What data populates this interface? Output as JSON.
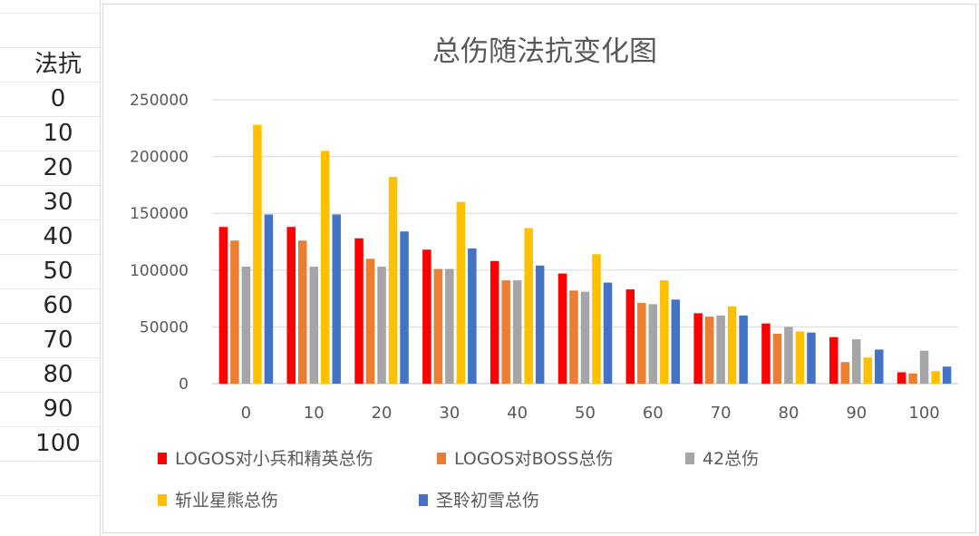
{
  "sheet": {
    "header": "法抗",
    "cells": [
      "0",
      "10",
      "20",
      "30",
      "40",
      "50",
      "60",
      "70",
      "80",
      "90",
      "100"
    ]
  },
  "chart_data": {
    "type": "bar",
    "title": "总伤随法抗变化图",
    "xlabel": "",
    "ylabel": "",
    "categories": [
      "0",
      "10",
      "20",
      "30",
      "40",
      "50",
      "60",
      "70",
      "80",
      "90",
      "100"
    ],
    "ylim": [
      0,
      250000
    ],
    "yticks": [
      "0",
      "50000",
      "100000",
      "150000",
      "200000",
      "250000"
    ],
    "grid": true,
    "legend_position": "bottom",
    "series": [
      {
        "name": "LOGOS对小兵和精英总伤",
        "color": "#ff0000",
        "values": [
          138000,
          138000,
          128000,
          118000,
          108000,
          97000,
          83000,
          62000,
          53000,
          41000,
          10000
        ]
      },
      {
        "name": "LOGOS对BOSS总伤",
        "color": "#ed7d31",
        "values": [
          126000,
          126000,
          110000,
          101000,
          91000,
          82000,
          71000,
          59000,
          44000,
          19000,
          9000
        ]
      },
      {
        "name": "42总伤",
        "color": "#a5a5a5",
        "values": [
          103000,
          103000,
          103000,
          101000,
          91000,
          81000,
          70000,
          60000,
          50000,
          39000,
          29000
        ]
      },
      {
        "name": "斩业星熊总伤",
        "color": "#ffc000",
        "values": [
          228000,
          205000,
          182000,
          160000,
          137000,
          114000,
          91000,
          68000,
          46000,
          23000,
          11000
        ]
      },
      {
        "name": "圣聆初雪总伤",
        "color": "#4472c4",
        "values": [
          149000,
          149000,
          134000,
          119000,
          104000,
          89000,
          74000,
          60000,
          45000,
          30000,
          15000
        ]
      }
    ]
  }
}
